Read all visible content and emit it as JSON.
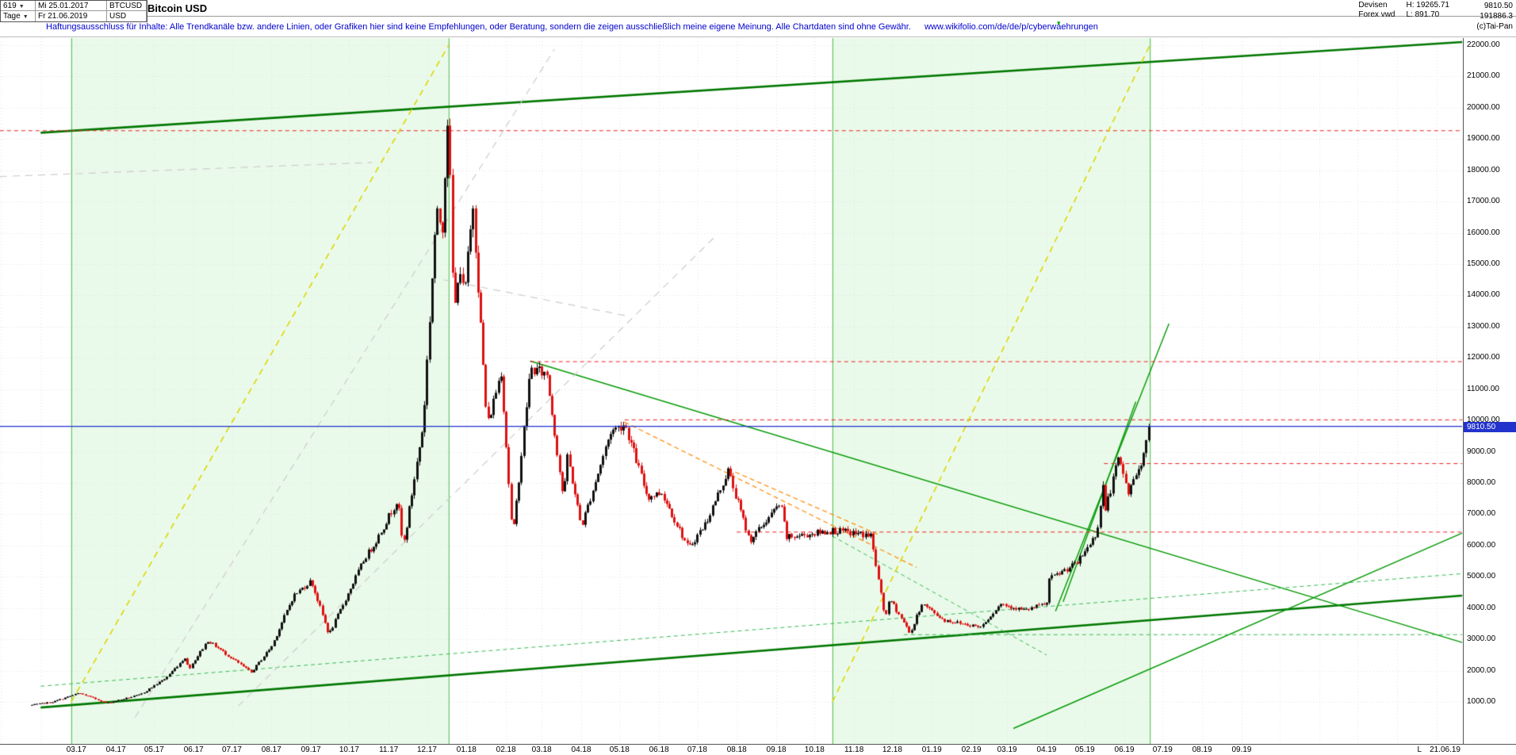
{
  "header": {
    "bars_count": "619",
    "start_date": "Mi 25.01.2017",
    "period": "Tage",
    "end_date": "Fr 21.06.2019",
    "symbol": "BTCUSD",
    "currency": "USD",
    "title": "Bitcoin USD",
    "category": "Devisen",
    "source": "Forex vwd",
    "high_label": "H: 19265.71",
    "low_label": "L: 891.70",
    "last_price": "9810.50",
    "volume": "191886.3",
    "copyright": "(c)Tai-Pan"
  },
  "disclaimer": {
    "text": "Haftungsausschluss für Inhalte: Alle Trendkanäle bzw. andere Linien, oder Grafiken hier sind keine Empfehlungen, oder Beratung, sondern die zeigen ausschließlich meine eigene Meinung. Alle Chartdaten sind ohne Gewähr.",
    "url": "www.wikifolio.com/de/de/p/cyberwaehrungen"
  },
  "chart_data": {
    "type": "candlestick",
    "symbol": "BTCUSD",
    "title": "Bitcoin USD",
    "current_price": 9810.5,
    "session_high": 19265.71,
    "session_low": 891.7,
    "y_axis": {
      "min": 1000,
      "max": 22000,
      "tick_step": 1000,
      "ticks": [
        "22000.00",
        "21000.00",
        "20000.00",
        "19000.00",
        "18000.00",
        "17000.00",
        "16000.00",
        "15000.00",
        "14000.00",
        "13000.00",
        "12000.00",
        "11000.00",
        "10000.00",
        "9000.00",
        "8000.00",
        "7000.00",
        "6000.00",
        "5000.00",
        "4000.00",
        "3000.00",
        "2000.00",
        "1000.00"
      ]
    },
    "x_axis": {
      "start_date": "2017-01-25",
      "end_date": "2019-06-21",
      "last_label": "L",
      "last_date_label": "21.06.19",
      "labels": [
        {
          "label": "03.17",
          "date": "2017-03-01"
        },
        {
          "label": "04.17",
          "date": "2017-04-01"
        },
        {
          "label": "05.17",
          "date": "2017-05-01"
        },
        {
          "label": "06.17",
          "date": "2017-06-01"
        },
        {
          "label": "07.17",
          "date": "2017-07-01"
        },
        {
          "label": "08.17",
          "date": "2017-08-01"
        },
        {
          "label": "09.17",
          "date": "2017-09-01"
        },
        {
          "label": "10.17",
          "date": "2017-10-01"
        },
        {
          "label": "11.17",
          "date": "2017-11-01"
        },
        {
          "label": "12.17",
          "date": "2017-12-01"
        },
        {
          "label": "01.18",
          "date": "2018-01-01"
        },
        {
          "label": "02.18",
          "date": "2018-02-01"
        },
        {
          "label": "03.18",
          "date": "2018-03-01"
        },
        {
          "label": "04.18",
          "date": "2018-04-01"
        },
        {
          "label": "05.18",
          "date": "2018-05-01"
        },
        {
          "label": "06.18",
          "date": "2018-06-01"
        },
        {
          "label": "07.18",
          "date": "2018-07-01"
        },
        {
          "label": "08.18",
          "date": "2018-08-01"
        },
        {
          "label": "09.18",
          "date": "2018-09-01"
        },
        {
          "label": "10.18",
          "date": "2018-10-01"
        },
        {
          "label": "11.18",
          "date": "2018-11-01"
        },
        {
          "label": "12.18",
          "date": "2018-12-01"
        },
        {
          "label": "01.19",
          "date": "2019-01-01"
        },
        {
          "label": "02.19",
          "date": "2019-02-01"
        },
        {
          "label": "03.19",
          "date": "2019-03-01"
        },
        {
          "label": "04.19",
          "date": "2019-04-01"
        },
        {
          "label": "05.19",
          "date": "2019-05-01"
        },
        {
          "label": "06.19",
          "date": "2019-06-01"
        },
        {
          "label": "07.19",
          "date": "2019-07-01"
        },
        {
          "label": "08.19",
          "date": "2019-08-01"
        },
        {
          "label": "09.19",
          "date": "2019-09-01"
        }
      ]
    },
    "price_keyframes": [
      [
        "2017-01-25",
        900
      ],
      [
        "2017-02-10",
        995
      ],
      [
        "2017-03-03",
        1280
      ],
      [
        "2017-03-25",
        960
      ],
      [
        "2017-04-20",
        1230
      ],
      [
        "2017-05-10",
        1760
      ],
      [
        "2017-05-25",
        2420
      ],
      [
        "2017-05-28",
        2050
      ],
      [
        "2017-06-12",
        2960
      ],
      [
        "2017-07-16",
        1940
      ],
      [
        "2017-08-01",
        2780
      ],
      [
        "2017-08-18",
        4380
      ],
      [
        "2017-09-01",
        4880
      ],
      [
        "2017-09-15",
        3150
      ],
      [
        "2017-10-13",
        5600
      ],
      [
        "2017-10-21",
        6080
      ],
      [
        "2017-11-08",
        7480
      ],
      [
        "2017-11-12",
        5900
      ],
      [
        "2017-11-28",
        9900
      ],
      [
        "2017-12-08",
        16600
      ],
      [
        "2017-12-13",
        16250
      ],
      [
        "2017-12-17",
        19650
      ],
      [
        "2017-12-19",
        17600
      ],
      [
        "2017-12-22",
        13200
      ],
      [
        "2017-12-26",
        15100
      ],
      [
        "2017-12-30",
        13900
      ],
      [
        "2018-01-06",
        16900
      ],
      [
        "2018-01-17",
        9800
      ],
      [
        "2018-01-28",
        11600
      ],
      [
        "2018-02-06",
        6200
      ],
      [
        "2018-02-20",
        11650
      ],
      [
        "2018-03-05",
        11480
      ],
      [
        "2018-03-18",
        7450
      ],
      [
        "2018-03-21",
        8900
      ],
      [
        "2018-04-01",
        6600
      ],
      [
        "2018-04-24",
        9650
      ],
      [
        "2018-05-05",
        9900
      ],
      [
        "2018-05-23",
        7550
      ],
      [
        "2018-06-03",
        7700
      ],
      [
        "2018-06-24",
        5900
      ],
      [
        "2018-07-08",
        6750
      ],
      [
        "2018-07-25",
        8400
      ],
      [
        "2018-08-11",
        6150
      ],
      [
        "2018-09-04",
        7350
      ],
      [
        "2018-09-09",
        6250
      ],
      [
        "2018-10-15",
        6480
      ],
      [
        "2018-11-14",
        6320
      ],
      [
        "2018-11-25",
        3700
      ],
      [
        "2018-11-29",
        4280
      ],
      [
        "2018-12-15",
        3190
      ],
      [
        "2018-12-24",
        4150
      ],
      [
        "2019-01-10",
        3620
      ],
      [
        "2019-01-28",
        3480
      ],
      [
        "2019-02-08",
        3400
      ],
      [
        "2019-02-24",
        4140
      ],
      [
        "2019-03-15",
        3920
      ],
      [
        "2019-04-01",
        4150
      ],
      [
        "2019-04-03",
        4920
      ],
      [
        "2019-04-25",
        5450
      ],
      [
        "2019-05-10",
        6380
      ],
      [
        "2019-05-16",
        8200
      ],
      [
        "2019-05-17",
        7150
      ],
      [
        "2019-05-27",
        8750
      ],
      [
        "2019-05-31",
        8300
      ],
      [
        "2019-06-04",
        7680
      ],
      [
        "2019-06-16",
        8900
      ],
      [
        "2019-06-21",
        9810.5
      ]
    ],
    "annotations": {
      "boxes": [
        {
          "name": "trend-box-2017",
          "from": "2017-02-25",
          "to": "2017-12-18"
        },
        {
          "name": "trend-box-2019",
          "from": "2018-10-15",
          "to": "2019-06-21"
        }
      ],
      "lines": [
        {
          "name": "upper-trend-channel",
          "style": "trend",
          "from": [
            "2017-02-01",
            19200
          ],
          "to": [
            "2020-02-21",
            22100
          ]
        },
        {
          "name": "lower-trend-channel",
          "style": "trend",
          "from": [
            "2017-02-01",
            820
          ],
          "to": [
            "2020-02-21",
            4400
          ]
        },
        {
          "name": "descending-resistance-2018",
          "style": "green",
          "from": [
            "2018-02-20",
            11900
          ],
          "to": [
            "2020-02-21",
            2900
          ]
        },
        {
          "name": "rally-trendline-steep",
          "style": "green",
          "from": [
            "2019-04-08",
            3900
          ],
          "to": [
            "2019-07-06",
            13100
          ]
        },
        {
          "name": "rally-trendline-inner",
          "style": "green",
          "from": [
            "2019-04-14",
            4200
          ],
          "to": [
            "2019-06-10",
            10600
          ]
        },
        {
          "name": "accelerated-support",
          "style": "green",
          "from": [
            "2019-03-06",
            150
          ],
          "to": [
            "2020-02-21",
            6400
          ]
        },
        {
          "name": "channel-parallel",
          "style": "green-dash",
          "from": [
            "2017-02-01",
            1500
          ],
          "to": [
            "2020-02-21",
            5100
          ]
        },
        {
          "name": "breakdown-line",
          "style": "green-dash",
          "from": [
            "2018-10-15",
            6300
          ],
          "to": [
            "2019-04-01",
            2500
          ]
        },
        {
          "name": "support-3150",
          "style": "green-dash",
          "from": [
            "2018-12-10",
            3150
          ],
          "to": [
            "2020-02-21",
            3150
          ]
        },
        {
          "name": "ath-level",
          "style": "red-dash",
          "from": [
            "2016-12-31",
            19265.71
          ],
          "to": [
            "2020-02-21",
            19265.71
          ]
        },
        {
          "name": "resistance-11880",
          "style": "red-dash",
          "from": [
            "2018-02-20",
            11880
          ],
          "to": [
            "2020-02-21",
            11880
          ]
        },
        {
          "name": "resistance-10020",
          "style": "red-dash",
          "from": [
            "2018-05-05",
            10020
          ],
          "to": [
            "2020-02-21",
            10020
          ]
        },
        {
          "name": "resistance-8620",
          "style": "red-dash",
          "from": [
            "2019-05-16",
            8620
          ],
          "to": [
            "2020-02-21",
            8620
          ]
        },
        {
          "name": "level-6430",
          "style": "red-dash",
          "from": [
            "2018-08-01",
            6430
          ],
          "to": [
            "2020-02-21",
            6430
          ]
        },
        {
          "name": "downtrend-orange-1",
          "style": "orange-dash",
          "from": [
            "2018-05-05",
            9950
          ],
          "to": [
            "2018-12-20",
            5300
          ]
        },
        {
          "name": "downtrend-orange-2",
          "style": "orange-dash",
          "from": [
            "2018-07-25",
            8450
          ],
          "to": [
            "2018-11-20",
            6350
          ]
        },
        {
          "name": "bull-diagonal-2017",
          "style": "yellow-dash",
          "from": [
            "2017-02-25",
            1000
          ],
          "to": [
            "2017-12-18",
            22000
          ]
        },
        {
          "name": "bull-diagonal-2019",
          "style": "yellow-dash",
          "from": [
            "2018-10-15",
            1000
          ],
          "to": [
            "2019-06-21",
            22000
          ]
        },
        {
          "name": "ghost-diagonal-1",
          "style": "gray-dash",
          "from": [
            "2017-04-16",
            500
          ],
          "to": [
            "2018-03-11",
            21870
          ]
        },
        {
          "name": "ghost-diagonal-2",
          "style": "gray-dash",
          "from": [
            "2017-07-06",
            870
          ],
          "to": [
            "2018-07-14",
            15840
          ]
        },
        {
          "name": "ghost-line-mid",
          "style": "gray-dash",
          "from": [
            "2017-12-14",
            14500
          ],
          "to": [
            "2018-05-06",
            13350
          ]
        },
        {
          "name": "ghost-line-top",
          "style": "gray-dash",
          "from": [
            "2016-12-31",
            17800
          ],
          "to": [
            "2017-10-19",
            18250
          ]
        },
        {
          "name": "current-price-line",
          "style": "blue",
          "from": [
            "2016-12-31",
            9810.5
          ],
          "to": [
            "2020-02-21",
            9810.5
          ]
        }
      ]
    },
    "colors": {
      "candle_up": "#111111",
      "candle_down": "#dd1111",
      "trend": "#007700",
      "green": "#009900",
      "green_dash": "#33bb55",
      "red_dash": "#e82222",
      "orange_dash": "#ff8800",
      "yellow_dash": "#ddd600",
      "gray_dash": "#cccccc",
      "blue": "#2233cc",
      "box_fill": "rgba(140,225,140,0.18)",
      "box_edge": "#44bb44",
      "grid": "#e2e2e2",
      "badge_bg": "#2233cc"
    }
  }
}
